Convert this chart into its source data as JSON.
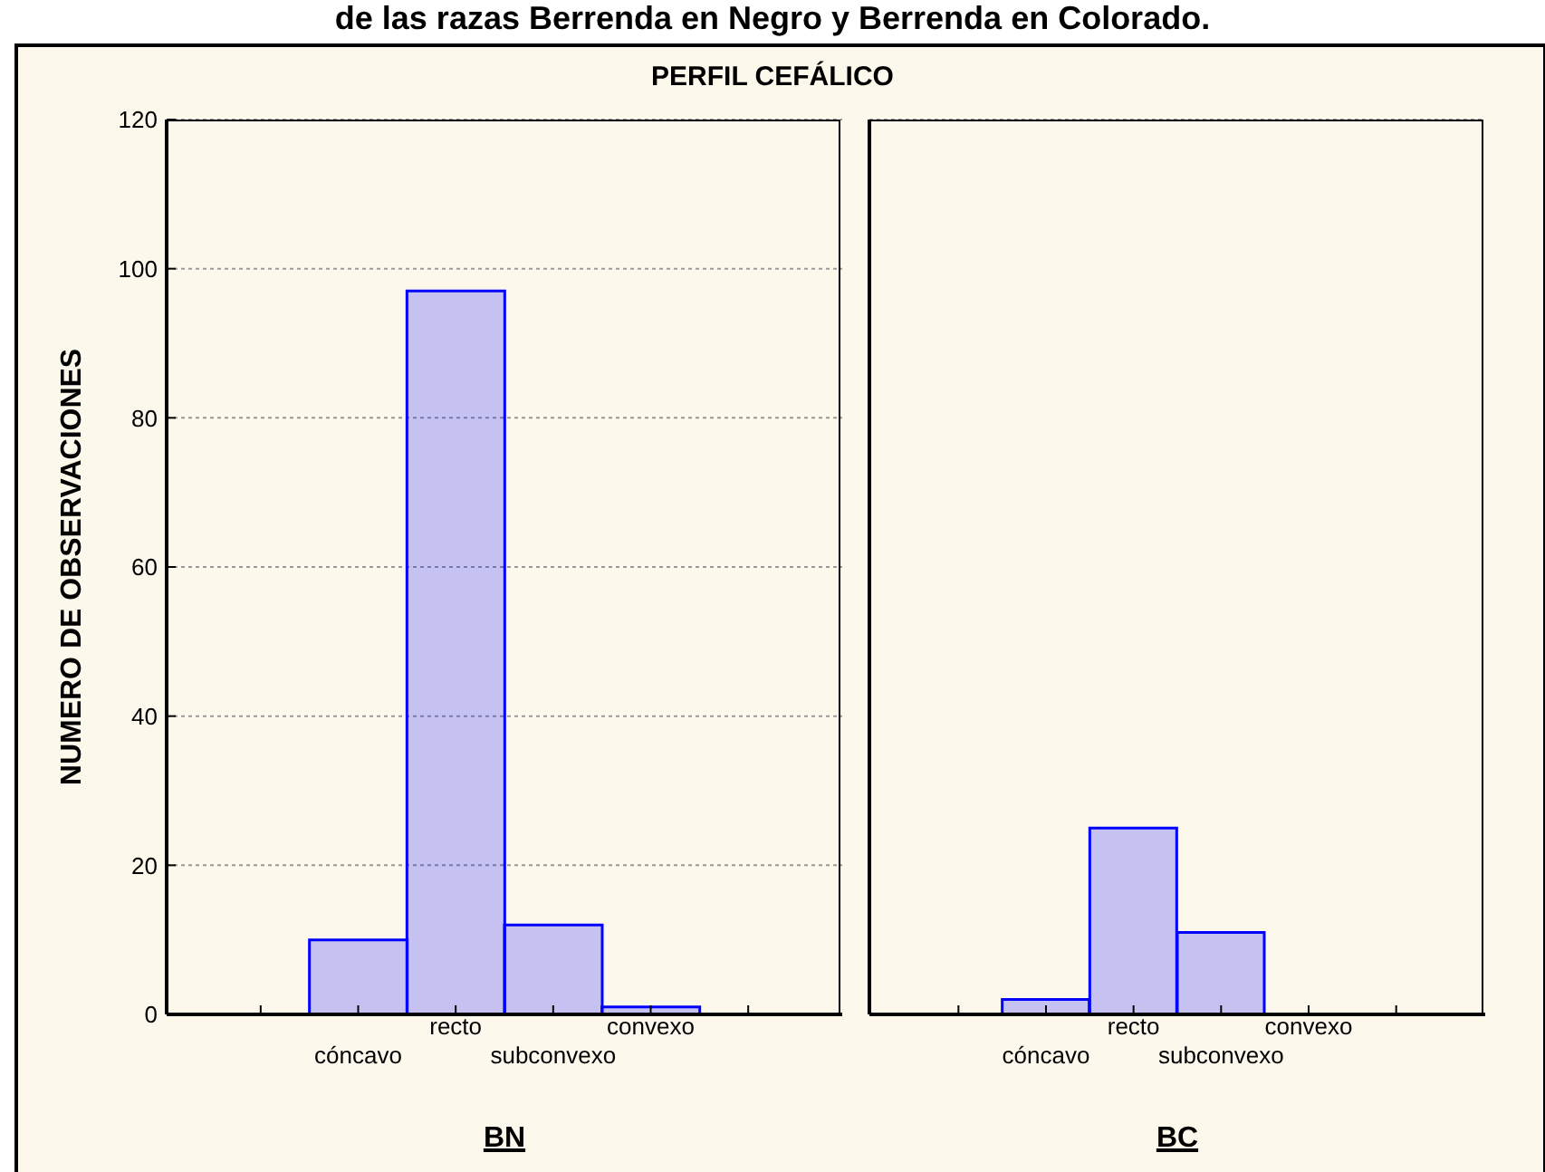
{
  "chart_data": [
    {
      "type": "bar",
      "title": "de las razas Berrenda en Negro y Berrenda en Colorado.",
      "subtitle": "PERFIL CEFÁLICO",
      "xlabel": "BN",
      "ylabel": "NUMERO DE OBSERVACIONES",
      "categories": [
        null,
        "cóncavo",
        "recto",
        "subconvexo",
        "convexo",
        null
      ],
      "series": [
        {
          "color": "#0000ff",
          "values": [
            null,
            10,
            97,
            12,
            1,
            null
          ]
        }
      ],
      "ylim": [
        0,
        120
      ],
      "yticks": [
        0,
        20,
        40,
        60,
        80,
        100,
        120
      ],
      "grid": "y"
    },
    {
      "type": "bar",
      "xlabel": "BC",
      "categories": [
        null,
        "cóncavo",
        "recto",
        "subconvexo",
        "convexo",
        null
      ],
      "series": [
        {
          "color": "#0000ff",
          "values": [
            null,
            2,
            25,
            11,
            0,
            null
          ]
        }
      ],
      "ylim": [
        0,
        120
      ],
      "yticks": [
        0,
        20,
        40,
        60,
        80,
        100,
        120
      ],
      "grid": "y",
      "tick_labels": "x"
    }
  ]
}
